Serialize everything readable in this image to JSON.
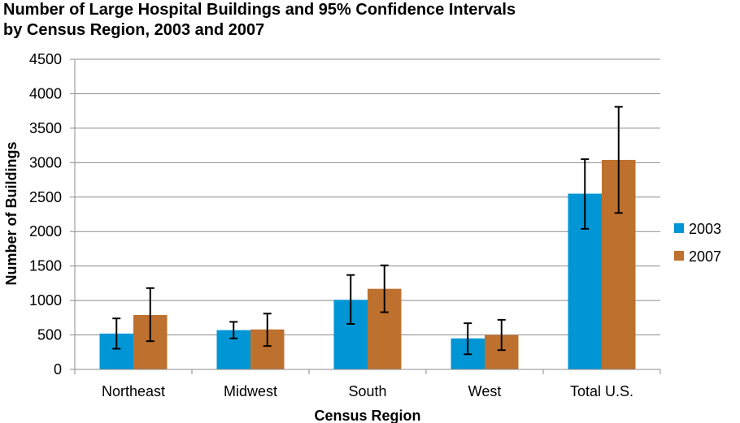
{
  "chart_data": {
    "type": "bar",
    "title": [
      "Number of Large Hospital Buildings and 95% Confidence Intervals",
      "by Census Region, 2003 and 2007"
    ],
    "xlabel": "Census Region",
    "ylabel": "Number of Buildings",
    "categories": [
      "Northeast",
      "Midwest",
      "South",
      "West",
      "Total U.S."
    ],
    "ylim": [
      0,
      4500
    ],
    "yticks": [
      0,
      500,
      1000,
      1500,
      2000,
      2500,
      3000,
      3500,
      4000,
      4500
    ],
    "grid": true,
    "legend_position": "right",
    "series": [
      {
        "name": "2003",
        "color": "#0096D6",
        "values": [
          520,
          570,
          1010,
          450,
          2550
        ],
        "ci_low": [
          300,
          450,
          660,
          220,
          2040
        ],
        "ci_high": [
          740,
          690,
          1370,
          670,
          3050
        ]
      },
      {
        "name": "2007",
        "color": "#BE702E",
        "values": [
          790,
          580,
          1170,
          500,
          3040
        ],
        "ci_low": [
          410,
          340,
          830,
          280,
          2270
        ],
        "ci_high": [
          1180,
          810,
          1510,
          720,
          3810
        ]
      }
    ]
  }
}
